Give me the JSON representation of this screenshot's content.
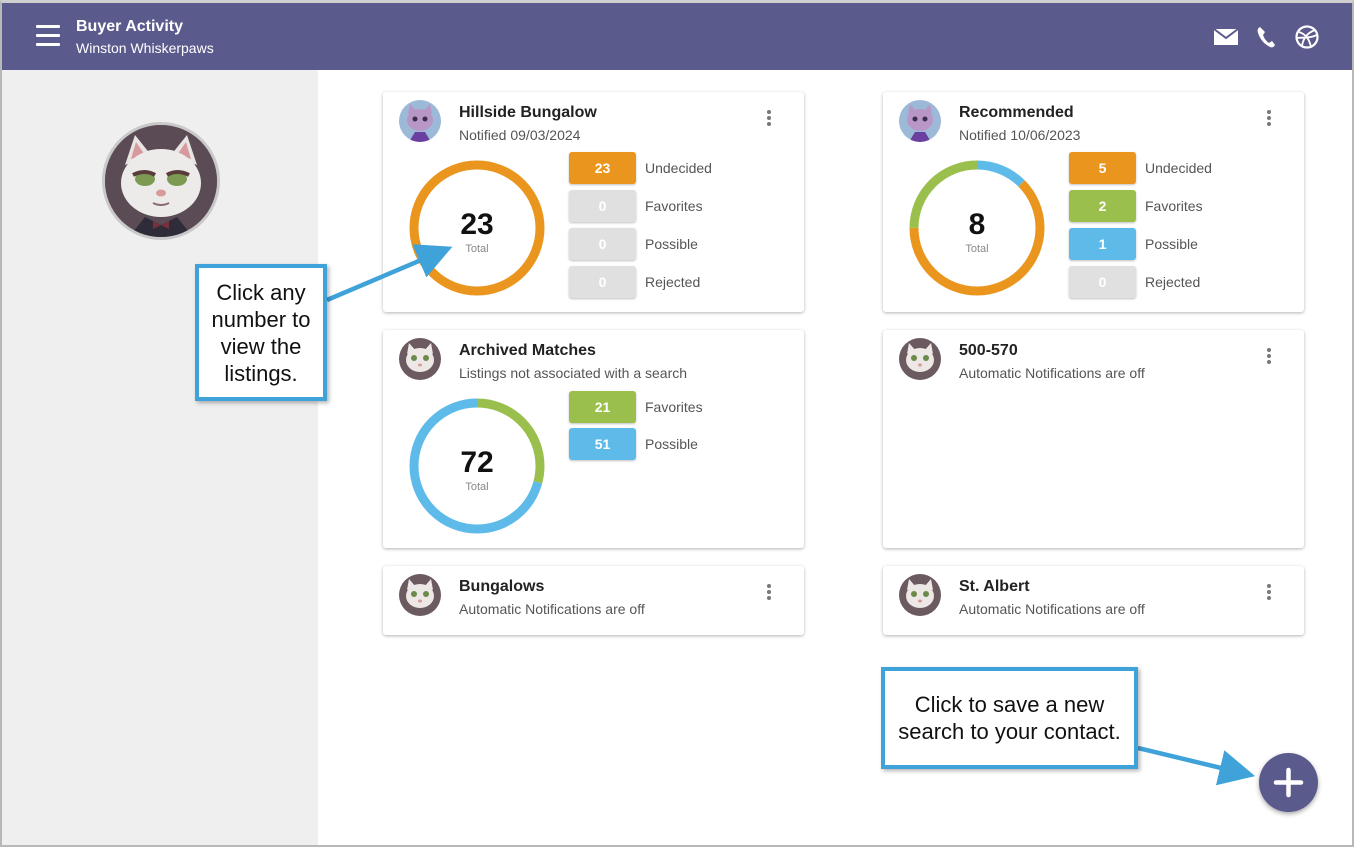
{
  "header": {
    "title": "Buyer Activity",
    "subtitle": "Winston Whiskerpaws",
    "icons": [
      "mail-icon",
      "phone-icon",
      "globe-icon"
    ]
  },
  "colors": {
    "header_bg": "#5b5a8c",
    "undecided": "#ea961e",
    "favorites": "#9bbf4d",
    "possible": "#5ebbe9",
    "rejected": "#e0e0e0",
    "callout_border": "#3fa3d9"
  },
  "cards": [
    {
      "title": "Hillside Bungalow",
      "sub": "Notified 09/03/2024",
      "total": "23",
      "total_label": "Total",
      "stats": [
        {
          "value": "23",
          "label": "Undecided"
        },
        {
          "value": "0",
          "label": "Favorites"
        },
        {
          "value": "0",
          "label": "Possible"
        },
        {
          "value": "0",
          "label": "Rejected"
        }
      ]
    },
    {
      "title": "Recommended",
      "sub": "Notified 10/06/2023",
      "total": "8",
      "total_label": "Total",
      "stats": [
        {
          "value": "5",
          "label": "Undecided"
        },
        {
          "value": "2",
          "label": "Favorites"
        },
        {
          "value": "1",
          "label": "Possible"
        },
        {
          "value": "0",
          "label": "Rejected"
        }
      ]
    },
    {
      "title": "Archived Matches",
      "sub": "Listings not associated with a search",
      "total": "72",
      "total_label": "Total",
      "stats": [
        {
          "value": "21",
          "label": "Favorites"
        },
        {
          "value": "51",
          "label": "Possible"
        }
      ]
    },
    {
      "title": "500-570",
      "sub": "Automatic Notifications are off"
    },
    {
      "title": "Bungalows",
      "sub": "Automatic Notifications are off"
    },
    {
      "title": "St. Albert",
      "sub": "Automatic Notifications are off"
    }
  ],
  "callouts": {
    "numbers": "Click any number to view the listings.",
    "save": "Click to save a new search to your contact."
  },
  "fab_icon": "plus-icon"
}
